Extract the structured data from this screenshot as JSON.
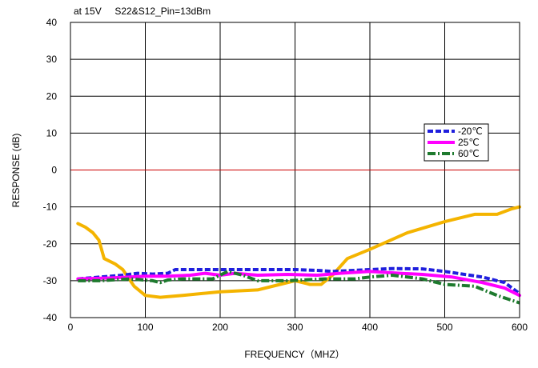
{
  "chart_data": {
    "type": "line",
    "annotation": "at 15V     S22&S12_Pin=13dBm",
    "xlabel": "FREQUENCY（MHZ）",
    "ylabel": "RESPONSE (dB)",
    "xlim": [
      0,
      600
    ],
    "ylim": [
      -40,
      40
    ],
    "x_ticks": [
      0,
      100,
      200,
      300,
      400,
      500,
      600
    ],
    "y_ticks": [
      -40,
      -30,
      -20,
      -10,
      0,
      10,
      20,
      30,
      40
    ],
    "grid": true,
    "legend_position": "right",
    "reference_line": {
      "y": 0,
      "color": "#cc0000"
    },
    "series": [
      {
        "name": "-20℃",
        "color": "#1f1fdd",
        "dash": "dashed",
        "in_legend": true,
        "x": [
          10,
          40,
          70,
          90,
          110,
          130,
          140,
          170,
          200,
          250,
          300,
          330,
          350,
          400,
          430,
          470,
          500,
          550,
          580,
          600
        ],
        "y": [
          -29.5,
          -29,
          -28.5,
          -28,
          -28.2,
          -28,
          -27,
          -27,
          -27,
          -27,
          -27,
          -27.2,
          -27.5,
          -27,
          -26.7,
          -26.8,
          -27.5,
          -29,
          -30.5,
          -33.5
        ]
      },
      {
        "name": "25℃",
        "color": "#ff00ff",
        "dash": "solid",
        "in_legend": true,
        "x": [
          10,
          50,
          80,
          100,
          130,
          160,
          180,
          200,
          220,
          250,
          290,
          330,
          360,
          400,
          440,
          470,
          510,
          550,
          580,
          600
        ],
        "y": [
          -29.5,
          -29.3,
          -29,
          -28.8,
          -28.8,
          -28.5,
          -28,
          -28.5,
          -28,
          -28.5,
          -28.3,
          -28.5,
          -28,
          -27.5,
          -28,
          -28.3,
          -29,
          -30.5,
          -32,
          -34
        ]
      },
      {
        "name": "60℃",
        "color": "#1e7a2e",
        "dash": "dashdot",
        "in_legend": true,
        "x": [
          10,
          40,
          80,
          110,
          120,
          130,
          150,
          190,
          210,
          230,
          250,
          290,
          340,
          380,
          400,
          430,
          470,
          500,
          540,
          570,
          600
        ],
        "y": [
          -30,
          -30,
          -29.5,
          -30,
          -30.5,
          -29.8,
          -29.5,
          -29.5,
          -27.5,
          -28.5,
          -30,
          -30,
          -29.5,
          -29.5,
          -29,
          -28.5,
          -29.5,
          -31,
          -31.5,
          -34,
          -36
        ]
      },
      {
        "name": "",
        "color": "#f4b400",
        "dash": "solid",
        "in_legend": false,
        "x": [
          10,
          20,
          30,
          38,
          45,
          60,
          70,
          85,
          100,
          120,
          150,
          200,
          250,
          280,
          300,
          320,
          335,
          350,
          370,
          400,
          450,
          500,
          540,
          570,
          590,
          600
        ],
        "y": [
          -14.5,
          -15.5,
          -17,
          -19,
          -24,
          -25.5,
          -27,
          -31.5,
          -34,
          -34.5,
          -34,
          -33,
          -32.5,
          -31,
          -30,
          -31,
          -31,
          -28.5,
          -24,
          -21.5,
          -17,
          -14,
          -12,
          -12,
          -10.5,
          -10
        ]
      }
    ]
  }
}
